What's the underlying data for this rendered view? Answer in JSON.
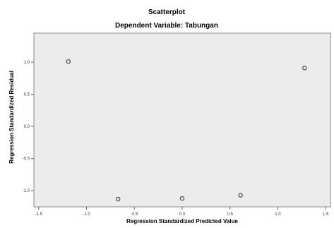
{
  "chart_data": {
    "type": "scatter",
    "title": "Scatterplot",
    "subtitle": "Dependent Variable: Tabungan",
    "xlabel": "Regression Standardized Predicted Value",
    "ylabel": "Regression Standardized Residual",
    "xlim": [
      -1.55,
      1.55
    ],
    "ylim": [
      -1.25,
      1.45
    ],
    "x_ticks": [
      -1.5,
      -1.0,
      -0.5,
      0.0,
      0.5,
      1.0,
      1.5
    ],
    "x_tick_labels": [
      "-1.5",
      "-1.0",
      "-0.5",
      "0.0",
      "0.5",
      "1.0",
      "1.5"
    ],
    "y_ticks": [
      -1.0,
      -0.5,
      0.0,
      0.5,
      1.0
    ],
    "y_tick_labels": [
      "-1.0",
      "-0.5",
      "0.0",
      "0.5",
      "1.0"
    ],
    "points": [
      {
        "x": -1.19,
        "y": 1.01
      },
      {
        "x": -0.67,
        "y": -1.13
      },
      {
        "x": 0.0,
        "y": -1.12
      },
      {
        "x": 0.61,
        "y": -1.07
      },
      {
        "x": 1.28,
        "y": 0.91
      }
    ],
    "grid": false,
    "plot_background": "#ececec",
    "marker_color": "#444444"
  }
}
